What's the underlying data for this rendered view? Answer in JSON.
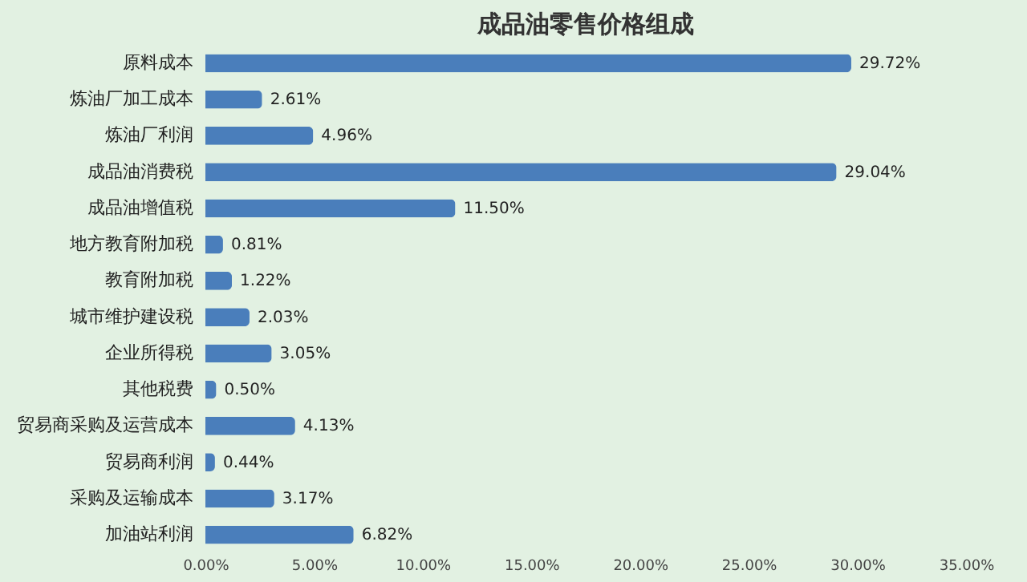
{
  "chart_data": {
    "type": "bar",
    "orientation": "horizontal",
    "title": "成品油零售价格组成",
    "categories": [
      "原料成本",
      "炼油厂加工成本",
      "炼油厂利润",
      "成品油消费税",
      "成品油增值税",
      "地方教育附加税",
      "教育附加税",
      "城市维护建设税",
      "企业所得税",
      "其他税费",
      "贸易商采购及运营成本",
      "贸易商利润",
      "采购及运输成本",
      "加油站利润"
    ],
    "values": [
      29.72,
      2.61,
      4.96,
      29.04,
      11.5,
      0.81,
      1.22,
      2.03,
      3.05,
      0.5,
      4.13,
      0.44,
      3.17,
      6.82
    ],
    "value_labels": [
      "29.72%",
      "2.61%",
      "4.96%",
      "29.04%",
      "11.50%",
      "0.81%",
      "1.22%",
      "2.03%",
      "3.05%",
      "0.50%",
      "4.13%",
      "0.44%",
      "3.17%",
      "6.82%"
    ],
    "color": "#4a7ebb",
    "xlim": [
      0,
      35
    ],
    "xticks": [
      {
        "value": 0,
        "label": "0.00%"
      },
      {
        "value": 5,
        "label": "5.00%"
      },
      {
        "value": 10,
        "label": "10.00%"
      },
      {
        "value": 15,
        "label": "15.00%"
      },
      {
        "value": 20,
        "label": "20.00%"
      },
      {
        "value": 25,
        "label": "25.00%"
      },
      {
        "value": 30,
        "label": "30.00%"
      },
      {
        "value": 35,
        "label": "35.00%"
      }
    ],
    "grid": false
  }
}
